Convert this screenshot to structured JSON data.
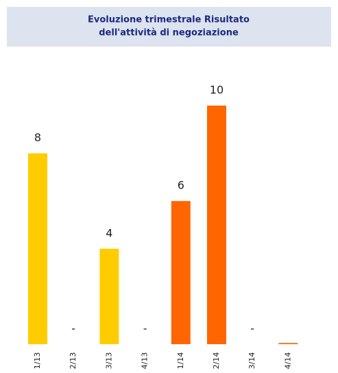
{
  "chart_data": {
    "type": "bar",
    "title": [
      "Evoluzione trimestrale Risultato",
      "dell'attività di negoziazione"
    ],
    "categories": [
      "1/13",
      "2/13",
      "3/13",
      "4/13",
      "1/14",
      "2/14",
      "3/14",
      "4/14"
    ],
    "values": [
      8,
      0,
      4,
      0,
      6,
      10,
      0,
      0.05
    ],
    "value_labels": [
      "8",
      "-",
      "4",
      "-",
      "6",
      "10",
      "-",
      null
    ],
    "colors": [
      "#ffcc00",
      "#ffcc00",
      "#ffcc00",
      "#ffcc00",
      "#ff6600",
      "#ff6600",
      "#ff6600",
      "#ff6600"
    ]
  }
}
